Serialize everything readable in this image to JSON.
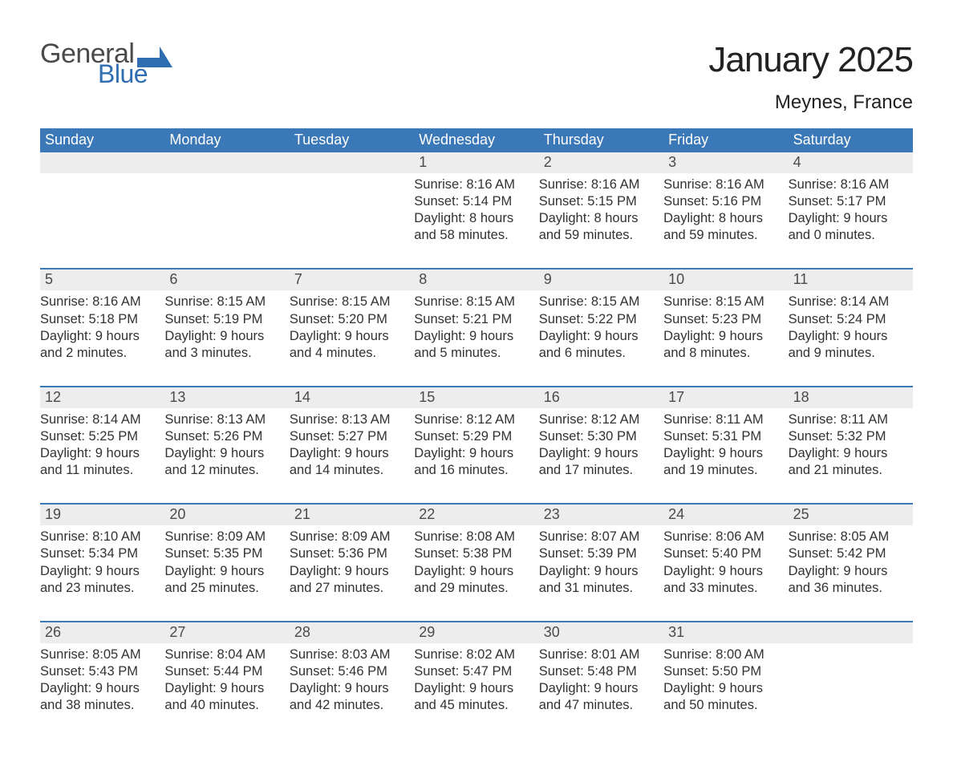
{
  "logo": {
    "text_general": "General",
    "text_blue": "Blue"
  },
  "title": "January 2025",
  "subtitle": "Meynes, France",
  "colors": {
    "header_bg": "#3b78b8",
    "header_text": "#ffffff",
    "daynum_bg": "#ededed",
    "body_text": "#323232",
    "rule": "#3b78b8",
    "page_bg": "#ffffff",
    "logo_gray": "#4a4a4a",
    "logo_blue": "#2f6eb0"
  },
  "day_headers": [
    "Sunday",
    "Monday",
    "Tuesday",
    "Wednesday",
    "Thursday",
    "Friday",
    "Saturday"
  ],
  "weeks": [
    [
      {
        "n": "",
        "lines": []
      },
      {
        "n": "",
        "lines": []
      },
      {
        "n": "",
        "lines": []
      },
      {
        "n": "1",
        "lines": [
          "Sunrise: 8:16 AM",
          "Sunset: 5:14 PM",
          "Daylight: 8 hours",
          "and 58 minutes."
        ]
      },
      {
        "n": "2",
        "lines": [
          "Sunrise: 8:16 AM",
          "Sunset: 5:15 PM",
          "Daylight: 8 hours",
          "and 59 minutes."
        ]
      },
      {
        "n": "3",
        "lines": [
          "Sunrise: 8:16 AM",
          "Sunset: 5:16 PM",
          "Daylight: 8 hours",
          "and 59 minutes."
        ]
      },
      {
        "n": "4",
        "lines": [
          "Sunrise: 8:16 AM",
          "Sunset: 5:17 PM",
          "Daylight: 9 hours",
          "and 0 minutes."
        ]
      }
    ],
    [
      {
        "n": "5",
        "lines": [
          "Sunrise: 8:16 AM",
          "Sunset: 5:18 PM",
          "Daylight: 9 hours",
          "and 2 minutes."
        ]
      },
      {
        "n": "6",
        "lines": [
          "Sunrise: 8:15 AM",
          "Sunset: 5:19 PM",
          "Daylight: 9 hours",
          "and 3 minutes."
        ]
      },
      {
        "n": "7",
        "lines": [
          "Sunrise: 8:15 AM",
          "Sunset: 5:20 PM",
          "Daylight: 9 hours",
          "and 4 minutes."
        ]
      },
      {
        "n": "8",
        "lines": [
          "Sunrise: 8:15 AM",
          "Sunset: 5:21 PM",
          "Daylight: 9 hours",
          "and 5 minutes."
        ]
      },
      {
        "n": "9",
        "lines": [
          "Sunrise: 8:15 AM",
          "Sunset: 5:22 PM",
          "Daylight: 9 hours",
          "and 6 minutes."
        ]
      },
      {
        "n": "10",
        "lines": [
          "Sunrise: 8:15 AM",
          "Sunset: 5:23 PM",
          "Daylight: 9 hours",
          "and 8 minutes."
        ]
      },
      {
        "n": "11",
        "lines": [
          "Sunrise: 8:14 AM",
          "Sunset: 5:24 PM",
          "Daylight: 9 hours",
          "and 9 minutes."
        ]
      }
    ],
    [
      {
        "n": "12",
        "lines": [
          "Sunrise: 8:14 AM",
          "Sunset: 5:25 PM",
          "Daylight: 9 hours",
          "and 11 minutes."
        ]
      },
      {
        "n": "13",
        "lines": [
          "Sunrise: 8:13 AM",
          "Sunset: 5:26 PM",
          "Daylight: 9 hours",
          "and 12 minutes."
        ]
      },
      {
        "n": "14",
        "lines": [
          "Sunrise: 8:13 AM",
          "Sunset: 5:27 PM",
          "Daylight: 9 hours",
          "and 14 minutes."
        ]
      },
      {
        "n": "15",
        "lines": [
          "Sunrise: 8:12 AM",
          "Sunset: 5:29 PM",
          "Daylight: 9 hours",
          "and 16 minutes."
        ]
      },
      {
        "n": "16",
        "lines": [
          "Sunrise: 8:12 AM",
          "Sunset: 5:30 PM",
          "Daylight: 9 hours",
          "and 17 minutes."
        ]
      },
      {
        "n": "17",
        "lines": [
          "Sunrise: 8:11 AM",
          "Sunset: 5:31 PM",
          "Daylight: 9 hours",
          "and 19 minutes."
        ]
      },
      {
        "n": "18",
        "lines": [
          "Sunrise: 8:11 AM",
          "Sunset: 5:32 PM",
          "Daylight: 9 hours",
          "and 21 minutes."
        ]
      }
    ],
    [
      {
        "n": "19",
        "lines": [
          "Sunrise: 8:10 AM",
          "Sunset: 5:34 PM",
          "Daylight: 9 hours",
          "and 23 minutes."
        ]
      },
      {
        "n": "20",
        "lines": [
          "Sunrise: 8:09 AM",
          "Sunset: 5:35 PM",
          "Daylight: 9 hours",
          "and 25 minutes."
        ]
      },
      {
        "n": "21",
        "lines": [
          "Sunrise: 8:09 AM",
          "Sunset: 5:36 PM",
          "Daylight: 9 hours",
          "and 27 minutes."
        ]
      },
      {
        "n": "22",
        "lines": [
          "Sunrise: 8:08 AM",
          "Sunset: 5:38 PM",
          "Daylight: 9 hours",
          "and 29 minutes."
        ]
      },
      {
        "n": "23",
        "lines": [
          "Sunrise: 8:07 AM",
          "Sunset: 5:39 PM",
          "Daylight: 9 hours",
          "and 31 minutes."
        ]
      },
      {
        "n": "24",
        "lines": [
          "Sunrise: 8:06 AM",
          "Sunset: 5:40 PM",
          "Daylight: 9 hours",
          "and 33 minutes."
        ]
      },
      {
        "n": "25",
        "lines": [
          "Sunrise: 8:05 AM",
          "Sunset: 5:42 PM",
          "Daylight: 9 hours",
          "and 36 minutes."
        ]
      }
    ],
    [
      {
        "n": "26",
        "lines": [
          "Sunrise: 8:05 AM",
          "Sunset: 5:43 PM",
          "Daylight: 9 hours",
          "and 38 minutes."
        ]
      },
      {
        "n": "27",
        "lines": [
          "Sunrise: 8:04 AM",
          "Sunset: 5:44 PM",
          "Daylight: 9 hours",
          "and 40 minutes."
        ]
      },
      {
        "n": "28",
        "lines": [
          "Sunrise: 8:03 AM",
          "Sunset: 5:46 PM",
          "Daylight: 9 hours",
          "and 42 minutes."
        ]
      },
      {
        "n": "29",
        "lines": [
          "Sunrise: 8:02 AM",
          "Sunset: 5:47 PM",
          "Daylight: 9 hours",
          "and 45 minutes."
        ]
      },
      {
        "n": "30",
        "lines": [
          "Sunrise: 8:01 AM",
          "Sunset: 5:48 PM",
          "Daylight: 9 hours",
          "and 47 minutes."
        ]
      },
      {
        "n": "31",
        "lines": [
          "Sunrise: 8:00 AM",
          "Sunset: 5:50 PM",
          "Daylight: 9 hours",
          "and 50 minutes."
        ]
      },
      {
        "n": "",
        "lines": []
      }
    ]
  ]
}
